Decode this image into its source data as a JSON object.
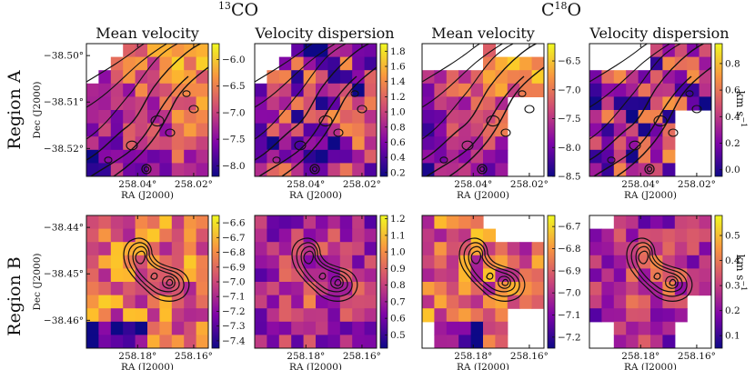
{
  "figure": {
    "molecules": [
      {
        "name": "CO",
        "isotope": "13"
      },
      {
        "name": "O",
        "prefix": "C",
        "isotope": "18"
      }
    ],
    "column_titles": [
      "Mean velocity",
      "Velocity dispersion",
      "Mean velocity",
      "Velocity dispersion"
    ],
    "row_labels": [
      "Region A",
      "Region B"
    ],
    "unit_label": "km s",
    "unit_exponent": "−1",
    "xlabel": "RA (J2000)",
    "ylabel": "Dec (J2000)"
  },
  "chart_data": [
    {
      "type": "heatmap",
      "id": "A-13CO-mean",
      "region": "Region A",
      "molecule": "13CO",
      "quantity": "Mean velocity",
      "title": "Mean velocity",
      "xlabel": "RA (J2000)",
      "ylabel": "Dec (J2000)",
      "x_ticks": [
        "258.04°",
        "258.02°"
      ],
      "y_ticks": [
        "−38.50°",
        "−38.51°",
        "−38.52°"
      ],
      "colorbar": {
        "ticks": [
          "−6.0",
          "−6.5",
          "−7.0",
          "−7.5",
          "−8.0"
        ],
        "range": [
          -8.2,
          -5.7
        ],
        "colormap": "plasma"
      }
    },
    {
      "type": "heatmap",
      "id": "A-13CO-disp",
      "region": "Region A",
      "molecule": "13CO",
      "quantity": "Velocity dispersion",
      "title": "Velocity dispersion",
      "xlabel": "RA (J2000)",
      "ylabel": "",
      "x_ticks": [
        "258.04°",
        "258.02°"
      ],
      "y_ticks": [],
      "colorbar": {
        "ticks": [
          "1.8",
          "1.6",
          "1.4",
          "1.2",
          "1.0",
          "0.8",
          "0.6",
          "0.4",
          "0.2"
        ],
        "range": [
          0.15,
          1.9
        ],
        "colormap": "plasma"
      }
    },
    {
      "type": "heatmap",
      "id": "A-C18O-mean",
      "region": "Region A",
      "molecule": "C18O",
      "quantity": "Mean velocity",
      "title": "Mean velocity",
      "xlabel": "RA (J2000)",
      "ylabel": "",
      "x_ticks": [
        "258.04°",
        "258.02°"
      ],
      "y_ticks": [],
      "colorbar": {
        "ticks": [
          "−6.5",
          "−7.0",
          "−7.5",
          "−8.0",
          "−8.5"
        ],
        "range": [
          -8.5,
          -6.2
        ],
        "colormap": "plasma"
      }
    },
    {
      "type": "heatmap",
      "id": "A-C18O-disp",
      "region": "Region A",
      "molecule": "C18O",
      "quantity": "Velocity dispersion",
      "title": "Velocity dispersion",
      "xlabel": "RA (J2000)",
      "ylabel": "",
      "x_ticks": [
        "258.04°",
        "258.02°"
      ],
      "y_ticks": [],
      "colorbar": {
        "ticks": [
          "0.8",
          "0.6",
          "0.4",
          "0.2",
          "0.0"
        ],
        "range": [
          -0.05,
          0.95
        ],
        "colormap": "plasma"
      }
    },
    {
      "type": "heatmap",
      "id": "B-13CO-mean",
      "region": "Region B",
      "molecule": "13CO",
      "quantity": "Mean velocity",
      "title": "",
      "xlabel": "RA (J2000)",
      "ylabel": "Dec (J2000)",
      "x_ticks": [
        "258.18°",
        "258.16°"
      ],
      "y_ticks": [
        "−38.44°",
        "−38.45°",
        "−38.46°"
      ],
      "colorbar": {
        "ticks": [
          "−6.6",
          "−6.7",
          "−6.8",
          "−6.9",
          "−7.0",
          "−7.1",
          "−7.2",
          "−7.3",
          "−7.4"
        ],
        "range": [
          -7.45,
          -6.55
        ],
        "colormap": "plasma"
      }
    },
    {
      "type": "heatmap",
      "id": "B-13CO-disp",
      "region": "Region B",
      "molecule": "13CO",
      "quantity": "Velocity dispersion",
      "title": "",
      "xlabel": "RA (J2000)",
      "ylabel": "",
      "x_ticks": [
        "258.18°",
        "258.16°"
      ],
      "y_ticks": [],
      "colorbar": {
        "ticks": [
          "1.2",
          "1.1",
          "1.0",
          "0.9",
          "0.8",
          "0.7",
          "0.6",
          "0.5"
        ],
        "range": [
          0.42,
          1.22
        ],
        "colormap": "plasma"
      }
    },
    {
      "type": "heatmap",
      "id": "B-C18O-mean",
      "region": "Region B",
      "molecule": "C18O",
      "quantity": "Mean velocity",
      "title": "",
      "xlabel": "RA (J2000)",
      "ylabel": "",
      "x_ticks": [
        "258.18°",
        "258.16°"
      ],
      "y_ticks": [],
      "colorbar": {
        "ticks": [
          "−6.7",
          "−6.8",
          "−6.9",
          "−7.0",
          "−7.1",
          "−7.2"
        ],
        "range": [
          -7.25,
          -6.65
        ],
        "colormap": "plasma"
      }
    },
    {
      "type": "heatmap",
      "id": "B-C18O-disp",
      "region": "Region B",
      "molecule": "C18O",
      "quantity": "Velocity dispersion",
      "title": "",
      "xlabel": "RA (J2000)",
      "ylabel": "",
      "x_ticks": [
        "258.18°",
        "258.16°"
      ],
      "y_ticks": [],
      "colorbar": {
        "ticks": [
          "0.5",
          "0.4",
          "0.3",
          "0.2",
          "0.1"
        ],
        "range": [
          0.05,
          0.58
        ],
        "colormap": "plasma"
      }
    }
  ]
}
